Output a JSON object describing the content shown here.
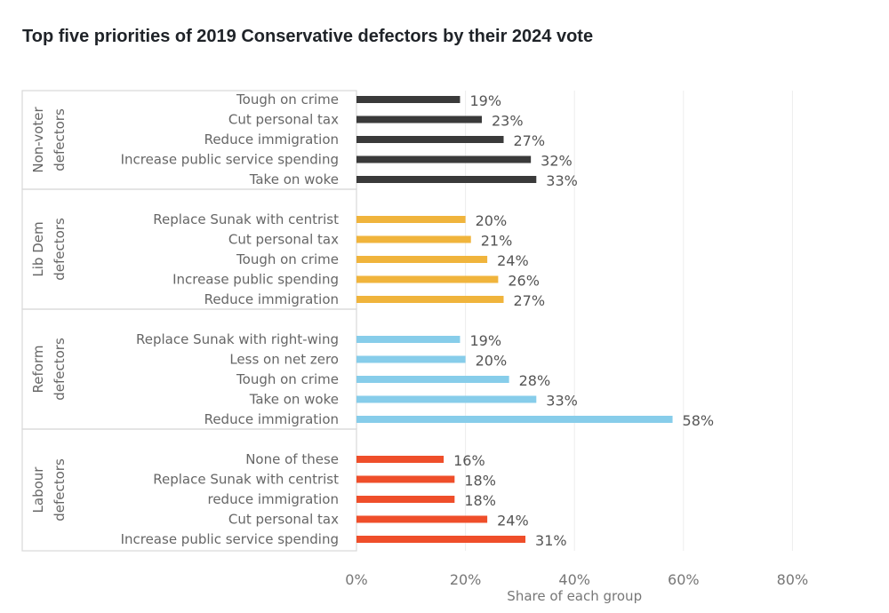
{
  "chart_data": {
    "type": "bar",
    "orientation": "horizontal",
    "title": "Top five priorities of 2019 Conservative defectors by their 2024 vote",
    "xlabel": "Share of each group",
    "xlim": [
      0,
      80
    ],
    "xticks": [
      "0%",
      "20%",
      "40%",
      "60%",
      "80%"
    ],
    "grid": true,
    "groups": [
      {
        "name": "Non-voter defectors",
        "color": "#3a3a3a",
        "items": [
          {
            "label": "Tough on crime",
            "value": 19
          },
          {
            "label": "Cut personal tax",
            "value": 23
          },
          {
            "label": "Reduce immigration",
            "value": 27
          },
          {
            "label": "Increase public service spending",
            "value": 32
          },
          {
            "label": "Take on woke",
            "value": 33
          }
        ]
      },
      {
        "name": "Lib Dem defectors",
        "color": "#f0b43c",
        "items": [
          {
            "label": "Replace Sunak with centrist",
            "value": 20
          },
          {
            "label": "Cut personal tax",
            "value": 21
          },
          {
            "label": "Tough on crime",
            "value": 24
          },
          {
            "label": "Increase public spending",
            "value": 26
          },
          {
            "label": "Reduce immigration",
            "value": 27
          }
        ]
      },
      {
        "name": "Reform defectors",
        "color": "#87cdea",
        "items": [
          {
            "label": "Replace Sunak with right-wing",
            "value": 19
          },
          {
            "label": "Less on net zero",
            "value": 20
          },
          {
            "label": "Tough on crime",
            "value": 28
          },
          {
            "label": "Take on woke",
            "value": 33
          },
          {
            "label": "Reduce immigration",
            "value": 58
          }
        ]
      },
      {
        "name": "Labour defectors",
        "color": "#ef4e2a",
        "items": [
          {
            "label": "None of these",
            "value": 16
          },
          {
            "label": "Replace Sunak with centrist",
            "value": 18
          },
          {
            "label": "reduce immigration",
            "value": 18
          },
          {
            "label": "Cut personal tax",
            "value": 24
          },
          {
            "label": "Increase public service spending",
            "value": 31
          }
        ]
      }
    ]
  }
}
